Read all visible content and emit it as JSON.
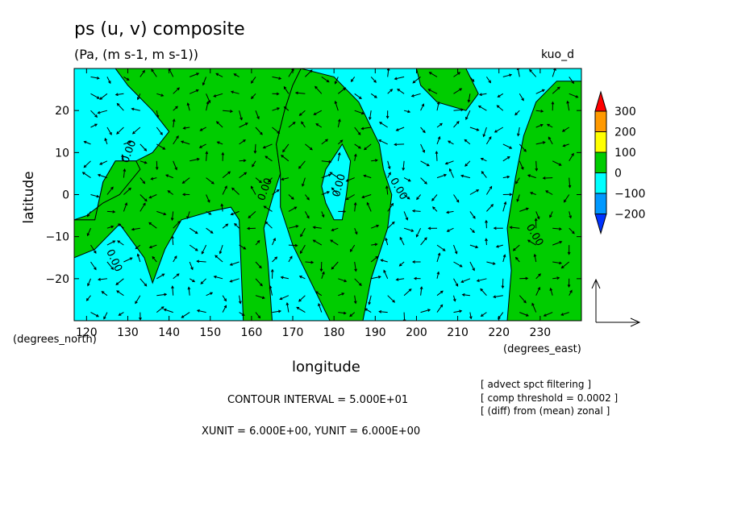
{
  "header": {
    "title": "ps (u, v) composite",
    "units": "(Pa, (m s-1, m s-1))",
    "tag": "kuo_d"
  },
  "footer": {
    "contour_interval": "CONTOUR INTERVAL = 5.000E+01",
    "unit_line": "XUNIT = 6.000E+00, YUNIT = 6.000E+00",
    "notes": [
      "[ advect spct filtering ]",
      "[ comp threshold = 0.0002 ]",
      "[ (diff) from (mean) zonal ]"
    ]
  },
  "chart_data": {
    "type": "heatmap",
    "variant": "filled contour with wind vectors",
    "xlabel": "longitude",
    "ylabel": "latitude",
    "x_units": "(degrees_east)",
    "y_units": "(degrees_north)",
    "xlim": [
      117,
      240
    ],
    "ylim": [
      -30,
      30
    ],
    "x_ticks": [
      120,
      130,
      140,
      150,
      160,
      170,
      180,
      190,
      200,
      210,
      220,
      230
    ],
    "y_ticks": [
      -20,
      -10,
      0,
      10,
      20
    ],
    "contour_label": "0.00",
    "contour_interval": 50,
    "colorbar": {
      "labels": [
        "300",
        "200",
        "100",
        "0",
        "−100",
        "−200"
      ],
      "colors": [
        "#ff0000",
        "#ff9900",
        "#ffff00",
        "#00cc00",
        "#00ffff",
        "#0099ff",
        "#0033ff"
      ]
    },
    "fill_colors": {
      "positive": "#00cc00",
      "negative": "#00ffff"
    },
    "positive_regions": [
      [
        [
          117,
          -15
        ],
        [
          122,
          -13
        ],
        [
          128,
          -7
        ],
        [
          134,
          -15
        ],
        [
          136,
          -21
        ],
        [
          139,
          -13
        ],
        [
          143,
          -6
        ],
        [
          150,
          -4
        ],
        [
          155,
          -3
        ],
        [
          157,
          -6
        ],
        [
          158,
          -30
        ],
        [
          165,
          -30
        ],
        [
          164,
          -16
        ],
        [
          163,
          -8
        ],
        [
          165,
          -1
        ],
        [
          167,
          5
        ],
        [
          166,
          12
        ],
        [
          168,
          20
        ],
        [
          170,
          26
        ],
        [
          172,
          30
        ],
        [
          127,
          30
        ],
        [
          130,
          26
        ],
        [
          136,
          20
        ],
        [
          140,
          15
        ],
        [
          136,
          10
        ],
        [
          132,
          8
        ],
        [
          127,
          8
        ],
        [
          124,
          3
        ],
        [
          122,
          -6
        ],
        [
          117,
          -6
        ]
      ],
      [
        [
          117,
          -6
        ],
        [
          122,
          -6
        ],
        [
          124,
          3
        ],
        [
          127,
          8
        ],
        [
          132,
          8
        ],
        [
          133,
          6
        ],
        [
          128,
          0
        ],
        [
          124,
          -2
        ],
        [
          120,
          -5
        ],
        [
          117,
          -6
        ]
      ],
      [
        [
          172,
          30
        ],
        [
          180,
          28
        ],
        [
          186,
          22
        ],
        [
          191,
          12
        ],
        [
          192,
          6
        ],
        [
          194,
          0
        ],
        [
          193,
          -8
        ],
        [
          189,
          -20
        ],
        [
          187,
          -30
        ],
        [
          179,
          -30
        ],
        [
          175,
          -22
        ],
        [
          170,
          -12
        ],
        [
          167,
          -3
        ],
        [
          167,
          5
        ],
        [
          166,
          12
        ],
        [
          168,
          20
        ],
        [
          170,
          26
        ]
      ],
      [
        [
          200,
          30
        ],
        [
          212,
          30
        ],
        [
          215,
          24
        ],
        [
          212,
          20
        ],
        [
          205,
          22
        ],
        [
          201,
          26
        ]
      ],
      [
        [
          222,
          -30
        ],
        [
          240,
          -30
        ],
        [
          240,
          27
        ],
        [
          234,
          27
        ],
        [
          229,
          22
        ],
        [
          226,
          14
        ],
        [
          224,
          4
        ],
        [
          222,
          -8
        ],
        [
          223,
          -18
        ]
      ]
    ],
    "negative_islands": [
      [
        [
          178,
          6
        ],
        [
          182,
          12
        ],
        [
          184,
          8
        ],
        [
          183,
          0
        ],
        [
          182,
          -6
        ],
        [
          180,
          -6
        ],
        [
          178,
          -2
        ],
        [
          177,
          2
        ]
      ]
    ],
    "vector_grid": {
      "lon_start": 121,
      "lon_step": 4,
      "lat_start": -28,
      "lat_step": 4
    }
  }
}
